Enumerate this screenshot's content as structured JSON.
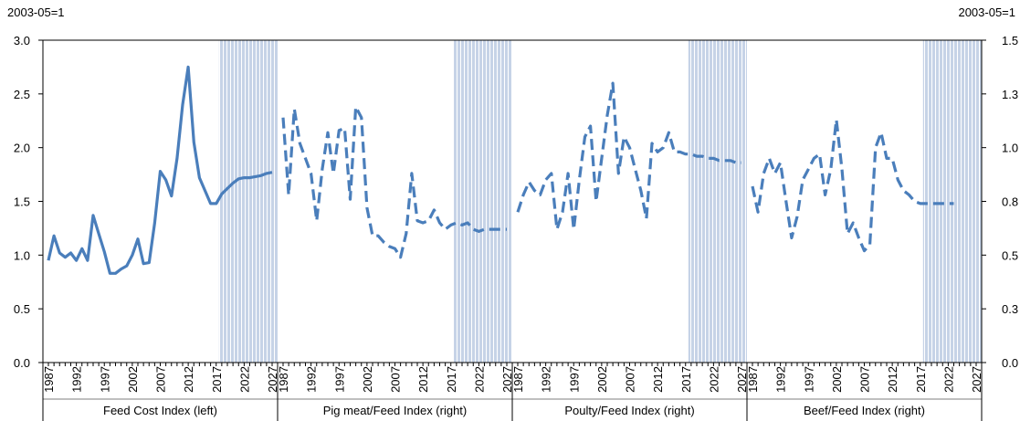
{
  "chart_data": {
    "type": "line",
    "y_label": "2003-05=1",
    "y2_label": "2003-05=1",
    "x": [
      1987,
      1988,
      1989,
      1990,
      1991,
      1992,
      1993,
      1994,
      1995,
      1996,
      1997,
      1998,
      1999,
      2000,
      2001,
      2002,
      2003,
      2004,
      2005,
      2006,
      2007,
      2008,
      2009,
      2010,
      2011,
      2012,
      2013,
      2014,
      2015,
      2016,
      2017,
      2018,
      2019,
      2020,
      2021,
      2022,
      2023,
      2024,
      2025,
      2026,
      2027
    ],
    "xticks": [
      1987,
      1992,
      1997,
      2002,
      2007,
      2012,
      2017,
      2022,
      2027
    ],
    "projection_start": 2018,
    "ylim": [
      0,
      3
    ],
    "yticks": [
      {
        "value": 0,
        "label": "0.0"
      },
      0.5,
      {
        "value": 1,
        "label": "1.0"
      },
      1.5,
      {
        "value": 2,
        "label": "2.0"
      },
      2.5,
      {
        "value": 3,
        "label": "3.0"
      }
    ],
    "y2lim": [
      0,
      1.5
    ],
    "y2ticks": [
      {
        "value": 0,
        "label": "0.0"
      },
      {
        "value": 0.25,
        "label": "0.3"
      },
      0.5,
      {
        "value": 0.75,
        "label": "0.8"
      },
      {
        "value": 1,
        "label": "1.0"
      },
      {
        "value": 1.25,
        "label": "1.3"
      },
      1.5
    ],
    "series": [
      {
        "name": "Feed Cost Index (left)",
        "color": "#4a7ebb",
        "style": "solid",
        "axis": "y",
        "values": [
          0.95,
          1.18,
          1.02,
          0.98,
          1.02,
          0.95,
          1.06,
          0.95,
          1.37,
          1.2,
          1.03,
          0.83,
          0.83,
          0.87,
          0.9,
          1.0,
          1.15,
          0.92,
          0.93,
          1.3,
          1.78,
          1.7,
          1.55,
          1.9,
          2.4,
          2.75,
          2.05,
          1.72,
          1.6,
          1.48,
          1.48,
          1.57,
          1.62,
          1.67,
          1.71,
          1.72,
          1.72,
          1.73,
          1.74,
          1.76,
          1.77
        ]
      },
      {
        "name": "Pig meat/Feed Index (right)",
        "color": "#4a7ebb",
        "style": "dashed",
        "axis": "y2",
        "values": [
          1.14,
          0.78,
          1.18,
          1.02,
          0.95,
          0.88,
          0.66,
          0.9,
          1.07,
          0.88,
          1.08,
          1.09,
          0.76,
          1.19,
          1.14,
          0.72,
          0.59,
          0.59,
          0.56,
          0.54,
          0.53,
          0.49,
          0.6,
          0.88,
          0.66,
          0.65,
          0.66,
          0.71,
          0.65,
          0.62,
          0.64,
          0.65,
          0.64,
          0.65,
          0.62,
          0.61,
          0.62,
          0.62,
          0.62,
          0.62,
          0.62
        ]
      },
      {
        "name": "Poulty/Feed Index (right)",
        "color": "#4a7ebb",
        "style": "dashed",
        "axis": "y2",
        "values": [
          0.7,
          0.78,
          0.84,
          0.8,
          0.78,
          0.85,
          0.88,
          0.62,
          0.7,
          0.88,
          0.62,
          0.85,
          1.05,
          1.1,
          0.75,
          0.95,
          1.15,
          1.3,
          0.88,
          1.05,
          1.0,
          0.9,
          0.8,
          0.67,
          1.02,
          0.98,
          1.0,
          1.07,
          0.98,
          0.98,
          0.97,
          0.97,
          0.96,
          0.96,
          0.95,
          0.95,
          0.94,
          0.94,
          0.94,
          0.93,
          0.93
        ]
      },
      {
        "name": "Beef/Feed Index (right)",
        "color": "#4a7ebb",
        "style": "dashed",
        "axis": "y2",
        "values": [
          0.82,
          0.7,
          0.88,
          0.95,
          0.88,
          0.93,
          0.75,
          0.58,
          0.68,
          0.85,
          0.9,
          0.95,
          0.97,
          0.78,
          0.9,
          1.13,
          0.9,
          0.6,
          0.65,
          0.58,
          0.52,
          0.55,
          1.0,
          1.07,
          0.95,
          0.95,
          0.85,
          0.8,
          0.78,
          0.75,
          0.74,
          0.74,
          0.74,
          0.74,
          0.74,
          0.74,
          0.74,
          null,
          null,
          null,
          null
        ]
      }
    ]
  }
}
